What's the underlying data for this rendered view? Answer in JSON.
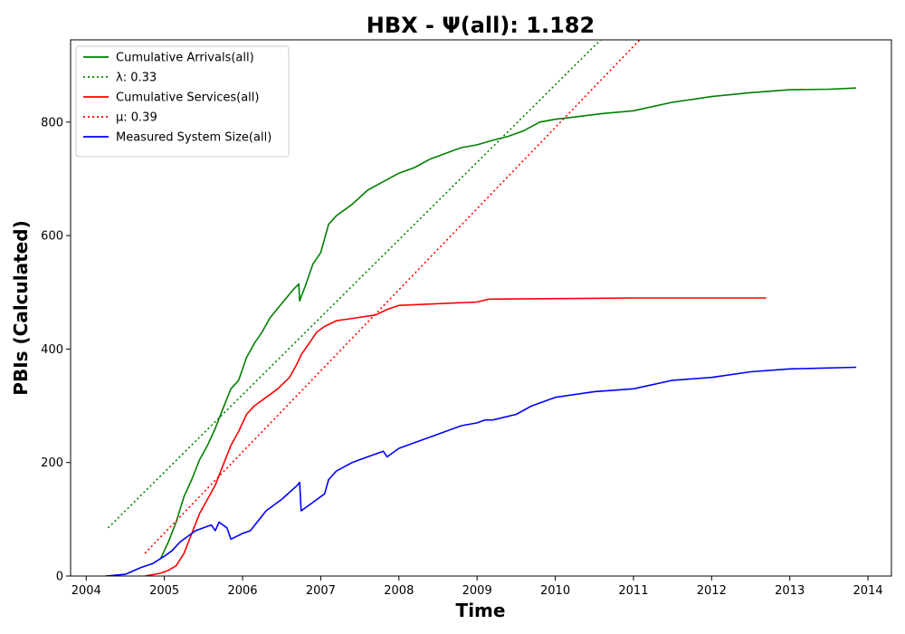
{
  "chart_data": {
    "type": "line",
    "title": "HBX -  Ψ(all): 1.182",
    "xlabel": "Time",
    "ylabel": "PBIs (Calculated)",
    "xlim": [
      2003.8,
      2014.3
    ],
    "ylim": [
      0,
      945
    ],
    "xticks": [
      "2004",
      "2005",
      "2006",
      "2007",
      "2008",
      "2009",
      "2010",
      "2011",
      "2012",
      "2013",
      "2014"
    ],
    "yticks": [
      "0",
      "200",
      "400",
      "600",
      "800"
    ],
    "grid": false,
    "legend_position": "top-left",
    "series": [
      {
        "name": "Cumulative Arrivals(all)",
        "color": "#008000",
        "style": "solid",
        "x": [
          2004.95,
          2005.05,
          2005.15,
          2005.25,
          2005.35,
          2005.45,
          2005.55,
          2005.65,
          2005.75,
          2005.85,
          2005.95,
          2006.05,
          2006.15,
          2006.25,
          2006.35,
          2006.5,
          2006.65,
          2006.72,
          2006.73,
          2006.8,
          2006.9,
          2007.0,
          2007.1,
          2007.2,
          2007.4,
          2007.6,
          2007.8,
          2008.0,
          2008.2,
          2008.4,
          2008.6,
          2008.8,
          2009.0,
          2009.2,
          2009.4,
          2009.6,
          2009.8,
          2010.0,
          2010.3,
          2010.6,
          2011.0,
          2011.5,
          2012.0,
          2012.5,
          2013.0,
          2013.5,
          2013.85
        ],
        "y": [
          30,
          60,
          95,
          140,
          170,
          205,
          230,
          260,
          295,
          330,
          345,
          385,
          410,
          430,
          455,
          480,
          505,
          515,
          485,
          510,
          550,
          570,
          620,
          635,
          655,
          680,
          695,
          710,
          720,
          735,
          745,
          755,
          760,
          768,
          775,
          785,
          800,
          805,
          810,
          815,
          820,
          835,
          845,
          852,
          857,
          858,
          860
        ]
      },
      {
        "name": "λ: 0.33",
        "color": "#008000",
        "style": "dotted",
        "x": [
          2004.28,
          2010.58
        ],
        "y": [
          85,
          945
        ]
      },
      {
        "name": "Cumulative Services(all)",
        "color": "#ff0000",
        "style": "solid",
        "x": [
          2004.75,
          2004.95,
          2005.05,
          2005.15,
          2005.25,
          2005.35,
          2005.45,
          2005.55,
          2005.65,
          2005.75,
          2005.85,
          2005.95,
          2006.05,
          2006.15,
          2006.3,
          2006.45,
          2006.6,
          2006.7,
          2006.75,
          2006.85,
          2006.95,
          2007.05,
          2007.2,
          2007.45,
          2007.7,
          2007.85,
          2008.0,
          2008.5,
          2009.0,
          2009.15,
          2010.0,
          2011.0,
          2012.0,
          2012.7
        ],
        "y": [
          0,
          5,
          10,
          18,
          40,
          75,
          110,
          135,
          160,
          195,
          230,
          255,
          285,
          300,
          315,
          330,
          350,
          375,
          390,
          410,
          430,
          440,
          450,
          455,
          460,
          470,
          477,
          480,
          483,
          488,
          489,
          490,
          490,
          490
        ]
      },
      {
        "name": "μ: 0.39",
        "color": "#ff0000",
        "style": "dotted",
        "x": [
          2004.75,
          2011.08
        ],
        "y": [
          40,
          945
        ]
      },
      {
        "name": "Measured System Size(all)",
        "color": "#0000ff",
        "style": "solid",
        "x": [
          2004.25,
          2004.5,
          2004.7,
          2004.85,
          2005.0,
          2005.1,
          2005.2,
          2005.3,
          2005.4,
          2005.5,
          2005.6,
          2005.65,
          2005.7,
          2005.8,
          2005.85,
          2006.0,
          2006.1,
          2006.3,
          2006.5,
          2006.7,
          2006.73,
          2006.75,
          2006.9,
          2007.05,
          2007.1,
          2007.2,
          2007.4,
          2007.6,
          2007.8,
          2007.85,
          2008.0,
          2008.2,
          2008.4,
          2008.6,
          2008.8,
          2009.0,
          2009.1,
          2009.2,
          2009.5,
          2009.7,
          2010.0,
          2010.5,
          2011.0,
          2011.5,
          2012.0,
          2012.5,
          2013.0,
          2013.85
        ],
        "y": [
          0,
          3,
          15,
          22,
          35,
          45,
          60,
          70,
          80,
          85,
          90,
          80,
          95,
          85,
          65,
          75,
          80,
          115,
          135,
          160,
          165,
          115,
          130,
          145,
          170,
          185,
          200,
          210,
          220,
          210,
          225,
          235,
          245,
          255,
          265,
          270,
          275,
          275,
          285,
          300,
          315,
          325,
          330,
          345,
          350,
          360,
          365,
          368
        ]
      }
    ]
  }
}
